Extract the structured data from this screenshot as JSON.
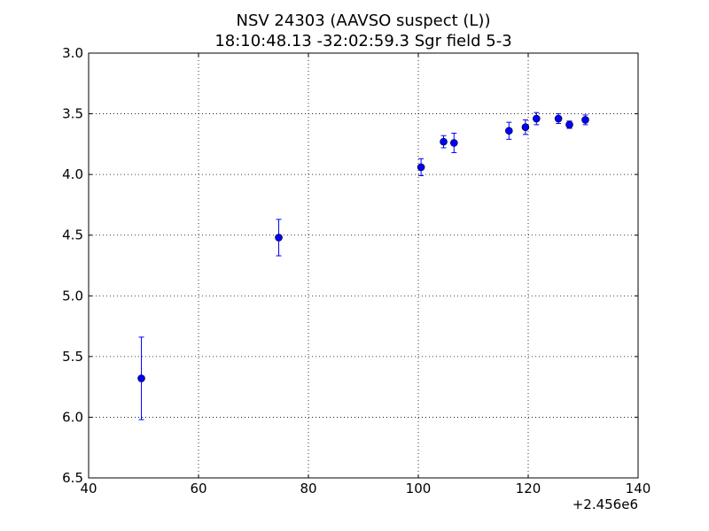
{
  "chart_data": {
    "type": "scatter",
    "title": "NSV 24303  (AAVSO suspect (L))",
    "subtitle": "18:10:48.13 -32:02:59.3 Sgr field 5-3",
    "xlabel": "",
    "ylabel": "",
    "x_offset_label": "+2.456e6",
    "xlim": [
      40,
      140
    ],
    "ylim": [
      6.5,
      3.0
    ],
    "y_inverted": true,
    "grid": true,
    "x_ticks": [
      40,
      60,
      80,
      100,
      120,
      140
    ],
    "x_tick_labels": [
      "40",
      "60",
      "80",
      "100",
      "120",
      "140"
    ],
    "y_ticks": [
      3.0,
      3.5,
      4.0,
      4.5,
      5.0,
      5.5,
      6.0,
      6.5
    ],
    "y_tick_labels": [
      "3.0",
      "3.5",
      "4.0",
      "4.5",
      "5.0",
      "5.5",
      "6.0",
      "6.5"
    ],
    "colors": {
      "marker": "#0000ff",
      "errorbar": "#0000ff"
    },
    "series": [
      {
        "x": [
          49.6,
          74.6,
          100.5,
          104.6,
          106.5,
          116.5,
          119.5,
          121.5,
          125.5,
          127.5,
          130.4
        ],
        "y": [
          5.68,
          4.52,
          3.94,
          3.73,
          3.74,
          3.64,
          3.61,
          3.54,
          3.54,
          3.59,
          3.55
        ],
        "yerr": [
          0.34,
          0.15,
          0.07,
          0.05,
          0.08,
          0.07,
          0.06,
          0.05,
          0.04,
          0.03,
          0.04
        ]
      }
    ]
  }
}
